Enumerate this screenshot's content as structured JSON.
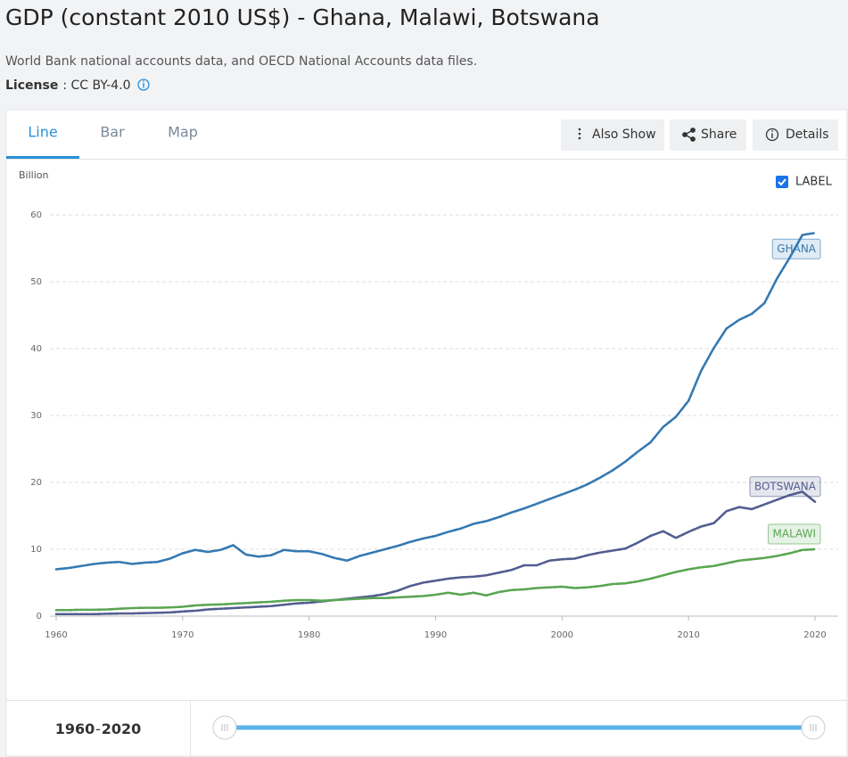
{
  "header": {
    "title": "GDP (constant 2010 US$) - Ghana, Malawi, Botswana",
    "source": "World Bank national accounts data, and OECD National Accounts data files.",
    "license": {
      "label": "License",
      "text": ": CC BY-4.0"
    }
  },
  "tabs": [
    "Line",
    "Bar",
    "Map"
  ],
  "buttons": [
    "Also Show",
    "Share",
    "Details"
  ],
  "label_toggle": "LABEL",
  "range": {
    "start": "1960",
    "separator": "-",
    "end": "2020"
  },
  "chart_data": {
    "type": "line",
    "y_unit": "Billion",
    "x": [
      1960,
      1961,
      1962,
      1963,
      1964,
      1965,
      1966,
      1967,
      1968,
      1969,
      1970,
      1971,
      1972,
      1973,
      1974,
      1975,
      1976,
      1977,
      1978,
      1979,
      1980,
      1981,
      1982,
      1983,
      1984,
      1985,
      1986,
      1987,
      1988,
      1989,
      1990,
      1991,
      1992,
      1993,
      1994,
      1995,
      1996,
      1997,
      1998,
      1999,
      2000,
      2001,
      2002,
      2003,
      2004,
      2005,
      2006,
      2007,
      2008,
      2009,
      2010,
      2011,
      2012,
      2013,
      2014,
      2015,
      2016,
      2017,
      2018,
      2019,
      2020
    ],
    "series": [
      {
        "name": "GHANA",
        "color": "#3479b2",
        "values": [
          7.0,
          7.2,
          7.5,
          7.8,
          8.0,
          8.1,
          7.8,
          8.0,
          8.1,
          8.6,
          9.4,
          9.9,
          9.6,
          9.9,
          10.6,
          9.2,
          8.9,
          9.1,
          9.9,
          9.7,
          9.7,
          9.3,
          8.7,
          8.3,
          9.0,
          9.5,
          10.0,
          10.5,
          11.1,
          11.6,
          12.0,
          12.6,
          13.1,
          13.8,
          14.2,
          14.8,
          15.5,
          16.1,
          16.8,
          17.5,
          18.2,
          18.9,
          19.7,
          20.7,
          21.8,
          23.1,
          24.6,
          26.0,
          28.3,
          29.8,
          32.2,
          36.7,
          40.1,
          43.0,
          44.3,
          45.2,
          46.8,
          50.5,
          53.6,
          57.0,
          57.3
        ]
      },
      {
        "name": "BOTSWANA",
        "color": "#525d8f",
        "values": [
          0.3,
          0.3,
          0.3,
          0.3,
          0.35,
          0.4,
          0.4,
          0.45,
          0.5,
          0.55,
          0.7,
          0.8,
          1.0,
          1.1,
          1.2,
          1.3,
          1.4,
          1.5,
          1.7,
          1.9,
          2.0,
          2.2,
          2.4,
          2.6,
          2.8,
          3.0,
          3.3,
          3.8,
          4.5,
          5.0,
          5.3,
          5.6,
          5.8,
          5.9,
          6.1,
          6.5,
          6.9,
          7.6,
          7.6,
          8.3,
          8.5,
          8.6,
          9.1,
          9.5,
          9.8,
          10.1,
          11.0,
          12.0,
          12.7,
          11.7,
          12.6,
          13.4,
          13.9,
          15.7,
          16.3,
          16.0,
          16.7,
          17.4,
          18.1,
          18.6,
          17.1
        ]
      },
      {
        "name": "MALAWI",
        "color": "#5aa552",
        "values": [
          0.9,
          0.9,
          0.95,
          0.95,
          1.0,
          1.1,
          1.2,
          1.25,
          1.25,
          1.3,
          1.4,
          1.6,
          1.7,
          1.75,
          1.85,
          1.95,
          2.05,
          2.15,
          2.3,
          2.4,
          2.4,
          2.3,
          2.4,
          2.5,
          2.6,
          2.7,
          2.7,
          2.8,
          2.9,
          3.0,
          3.2,
          3.5,
          3.2,
          3.5,
          3.1,
          3.6,
          3.9,
          4.0,
          4.2,
          4.3,
          4.4,
          4.2,
          4.3,
          4.5,
          4.8,
          4.9,
          5.2,
          5.6,
          6.1,
          6.6,
          7.0,
          7.3,
          7.5,
          7.9,
          8.3,
          8.5,
          8.7,
          9.0,
          9.4,
          9.9,
          10.0
        ]
      }
    ],
    "xlim": [
      1960,
      2020
    ],
    "xticks": [
      1960,
      1970,
      1980,
      1990,
      2000,
      2010,
      2020
    ],
    "ylim": [
      0,
      60
    ],
    "yticks": [
      0,
      10,
      20,
      30,
      40,
      50,
      60
    ],
    "grid": true,
    "labels": true
  }
}
